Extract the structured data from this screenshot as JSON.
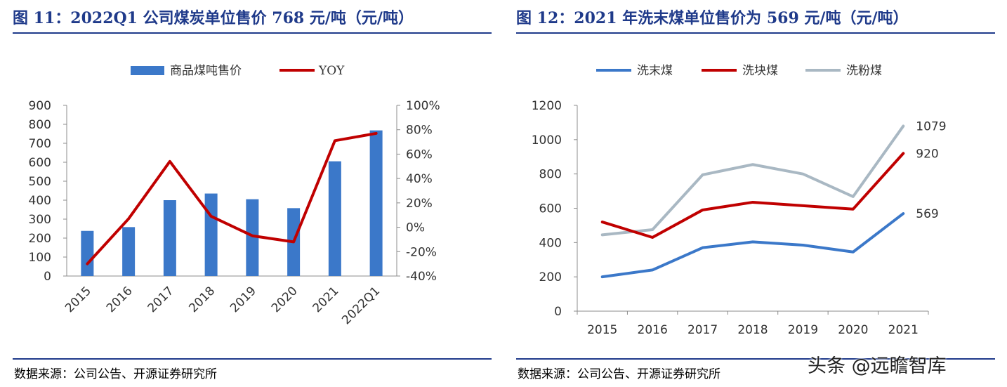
{
  "figures": [
    {
      "title": "图 11：2022Q1 公司煤炭单位售价 768 元/吨（元/吨）",
      "source": "数据来源：公司公告、开源证券研究所"
    },
    {
      "title": "图 12：2021 年洗末煤单位售价为 569 元/吨（元/吨）",
      "source": "数据来源：公司公告、开源证券研究所"
    }
  ],
  "watermark": "头条 @远瞻智库",
  "colors": {
    "title": "#1f3a8a",
    "bar": "#3b78c9",
    "yoy": "#c00000",
    "xm": "#3b78c9",
    "xk": "#c00000",
    "xf": "#a9b8c3",
    "axis": "#8c8c8c",
    "text": "#333333"
  },
  "chart_data": [
    {
      "type": "bar",
      "title": "",
      "categories": [
        "2015",
        "2016",
        "2017",
        "2018",
        "2019",
        "2020",
        "2021",
        "2022Q1"
      ],
      "series": [
        {
          "name": "商品煤吨售价",
          "type": "bar",
          "axis": "left",
          "values": [
            238,
            258,
            400,
            435,
            405,
            358,
            605,
            768
          ]
        },
        {
          "name": "YOY",
          "type": "line",
          "axis": "right",
          "values": [
            -30,
            7,
            54,
            9,
            -7,
            -12,
            71,
            77
          ]
        }
      ],
      "yticks_left": [
        "0",
        "100",
        "200",
        "300",
        "400",
        "500",
        "600",
        "700",
        "800",
        "900"
      ],
      "yticks_right": [
        "-40%",
        "-20%",
        "0%",
        "20%",
        "40%",
        "60%",
        "80%",
        "100%"
      ],
      "ylim_left": [
        0,
        900
      ],
      "ylim_right": [
        -40,
        100
      ],
      "legend_position": "top",
      "grid": false
    },
    {
      "type": "line",
      "title": "",
      "categories": [
        "2015",
        "2016",
        "2017",
        "2018",
        "2019",
        "2020",
        "2021"
      ],
      "series": [
        {
          "name": "洗末煤",
          "values": [
            200,
            240,
            370,
            404,
            385,
            345,
            569
          ]
        },
        {
          "name": "洗块煤",
          "values": [
            520,
            430,
            590,
            635,
            615,
            595,
            920
          ]
        },
        {
          "name": "洗粉煤",
          "values": [
            445,
            475,
            795,
            855,
            800,
            668,
            1079
          ]
        }
      ],
      "yticks": [
        "0",
        "200",
        "400",
        "600",
        "800",
        "1000",
        "1200"
      ],
      "ylim": [
        0,
        1200
      ],
      "data_labels": [
        {
          "series": "洗末煤",
          "text": "569"
        },
        {
          "series": "洗块煤",
          "text": "920"
        },
        {
          "series": "洗粉煤",
          "text": "1079"
        }
      ],
      "legend_position": "top",
      "grid": false
    }
  ]
}
